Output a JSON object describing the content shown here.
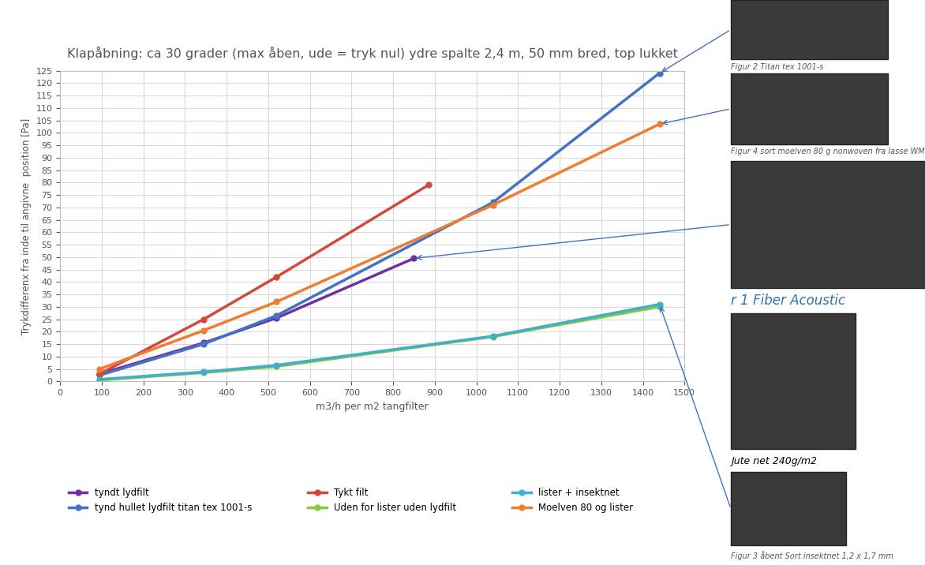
{
  "chart_data": {
    "type": "line",
    "title": "Klapåbning: ca 30 grader (max åben, ude = tryk nul) ydre spalte 2,4 m, 50 mm bred, top lukket",
    "x_label": "m3/h per m2 tangfilter",
    "y_label": "Trykdifferenx fra inde til angivne  position [Pa]",
    "xlim": [
      0,
      1500
    ],
    "xticks": [
      0,
      100,
      200,
      300,
      400,
      500,
      600,
      700,
      800,
      900,
      1000,
      1100,
      1200,
      1300,
      1400,
      1500
    ],
    "ylim": [
      0,
      125
    ],
    "yticks": [
      0,
      5,
      10,
      15,
      20,
      25,
      30,
      35,
      40,
      45,
      50,
      55,
      60,
      65,
      70,
      75,
      80,
      85,
      90,
      95,
      100,
      105,
      110,
      115,
      120,
      125
    ],
    "grid": true,
    "legend": "lower left",
    "marker": "circle",
    "series": [
      {
        "name": "tyndt lydfilt",
        "color": "#7030a0",
        "x": [
          95,
          345,
          520,
          850
        ],
        "values": [
          3,
          15.5,
          25.5,
          49.5
        ]
      },
      {
        "name": "tynd hullet lydfilt titan tex 1001-s",
        "color": "#4472c4",
        "x": [
          95,
          345,
          520,
          1040,
          1440
        ],
        "values": [
          2.5,
          15,
          26.5,
          72,
          124
        ]
      },
      {
        "name": "Tykt filt",
        "color": "#d04a3c",
        "x": [
          95,
          345,
          520,
          885
        ],
        "values": [
          3,
          25,
          42,
          79
        ]
      },
      {
        "name": "Uden for lister uden lydfilt",
        "color": "#8cc63f",
        "x": [
          95,
          345,
          520,
          1040,
          1440
        ],
        "values": [
          0.5,
          3.5,
          6,
          18,
          30
        ]
      },
      {
        "name": "lister + insektnet",
        "color": "#3fb0c9",
        "x": [
          95,
          345,
          520,
          1040,
          1440
        ],
        "values": [
          0.8,
          3.8,
          6.5,
          18.2,
          31
        ]
      },
      {
        "name": "Moelven 80 og lister",
        "color": "#ed7d31",
        "x": [
          95,
          345,
          520,
          1040,
          1440
        ],
        "values": [
          5,
          20.5,
          32,
          71,
          103.5
        ]
      }
    ],
    "annotations": [
      "Figur 2 Titan tex 1001-s",
      "Figur 4 sort moelven 80 g nonwoven fra lasse WM",
      "r 1 Fiber Acoustic",
      "Jute net 240g/m2",
      "Figur 3 åbent Sort insektnet 1,2 x 1,7 mm"
    ]
  }
}
